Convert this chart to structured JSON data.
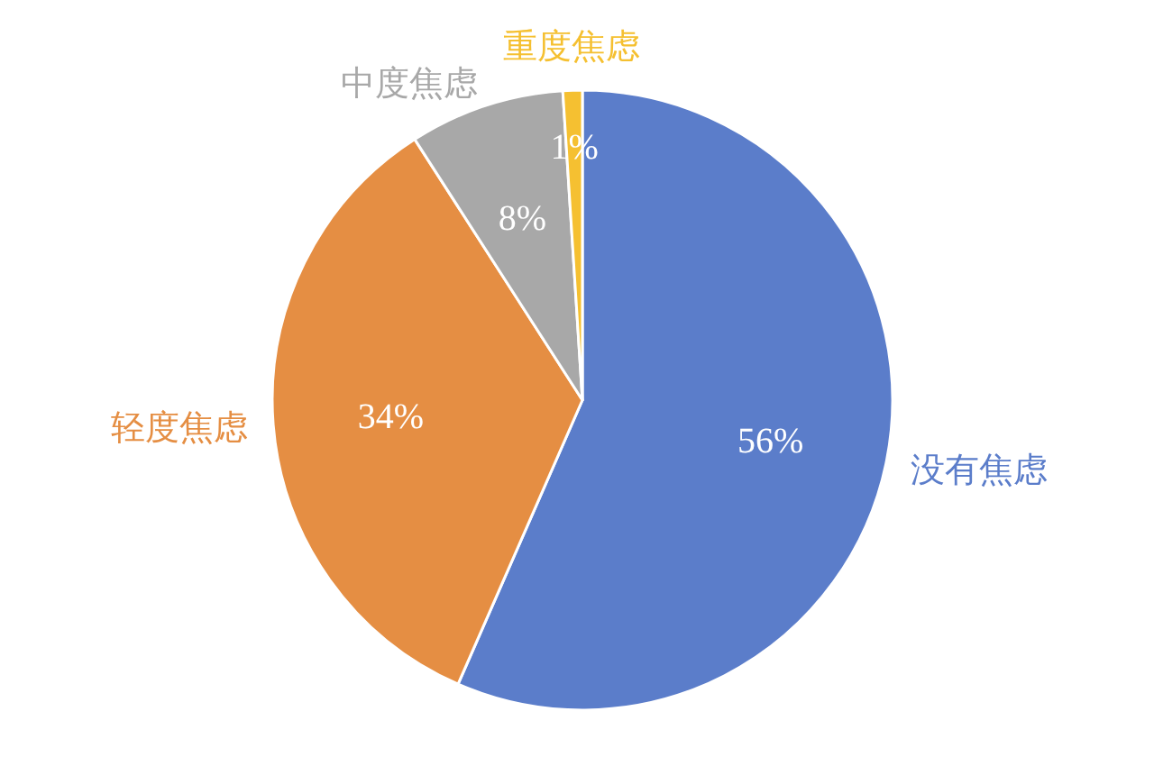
{
  "chart_data": {
    "type": "pie",
    "categories": [
      "没有焦虑",
      "轻度焦虑",
      "中度焦虑",
      "重度焦虑"
    ],
    "values": [
      56,
      34,
      8,
      1
    ],
    "colors": [
      "#5b7dca",
      "#e58e43",
      "#a8a8a8",
      "#f5c031"
    ],
    "value_labels": [
      "56%",
      "34%",
      "8%",
      "1%"
    ]
  }
}
